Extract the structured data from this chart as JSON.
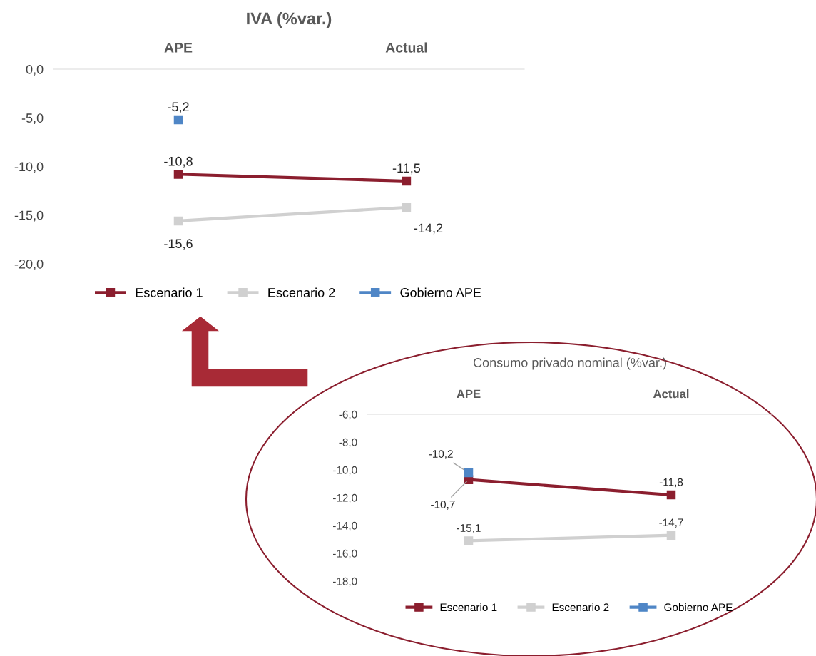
{
  "chart_data": [
    {
      "type": "line",
      "title": "IVA (%var.)",
      "categories": [
        "APE",
        "Actual"
      ],
      "ylim": [
        -20,
        0
      ],
      "yticks": [
        {
          "value": 0,
          "label": "0,0"
        },
        {
          "value": -5,
          "label": "-5,0"
        },
        {
          "value": -10,
          "label": "-10,0"
        },
        {
          "value": -15,
          "label": "-15,0"
        },
        {
          "value": -20,
          "label": "-20,0"
        }
      ],
      "series": [
        {
          "name": "Escenario 1",
          "color": "#8b1e2e",
          "values": [
            -10.8,
            -11.5
          ],
          "value_labels": [
            "-10,8",
            "-11,5"
          ]
        },
        {
          "name": "Escenario 2",
          "color": "#d0d0d0",
          "values": [
            -15.6,
            -14.2
          ],
          "value_labels": [
            "-15,6",
            "-14,2"
          ]
        },
        {
          "name": "Gobierno APE",
          "color": "#4f86c6",
          "values": [
            -5.2,
            null
          ],
          "value_labels": [
            "-5,2",
            null
          ]
        }
      ],
      "marker": "square",
      "grid": false,
      "legend": "bottom"
    },
    {
      "type": "line",
      "title": "Consumo privado nominal (%var.)",
      "categories": [
        "APE",
        "Actual"
      ],
      "ylim": [
        -18,
        -6
      ],
      "yticks": [
        {
          "value": -6,
          "label": "-6,0"
        },
        {
          "value": -8,
          "label": "-8,0"
        },
        {
          "value": -10,
          "label": "-10,0"
        },
        {
          "value": -12,
          "label": "-12,0"
        },
        {
          "value": -14,
          "label": "-14,0"
        },
        {
          "value": -16,
          "label": "-16,0"
        },
        {
          "value": -18,
          "label": "-18,0"
        }
      ],
      "series": [
        {
          "name": "Escenario 1",
          "color": "#8b1e2e",
          "values": [
            -10.7,
            -11.8
          ],
          "value_labels": [
            "-10,7",
            "-11,8"
          ]
        },
        {
          "name": "Escenario 2",
          "color": "#d0d0d0",
          "values": [
            -15.1,
            -14.7
          ],
          "value_labels": [
            "-15,1",
            "-14,7"
          ]
        },
        {
          "name": "Gobierno APE",
          "color": "#4f86c6",
          "values": [
            -10.2,
            null
          ],
          "value_labels": [
            "-10,2",
            null
          ]
        }
      ],
      "marker": "square",
      "grid": false,
      "legend": "bottom"
    }
  ]
}
